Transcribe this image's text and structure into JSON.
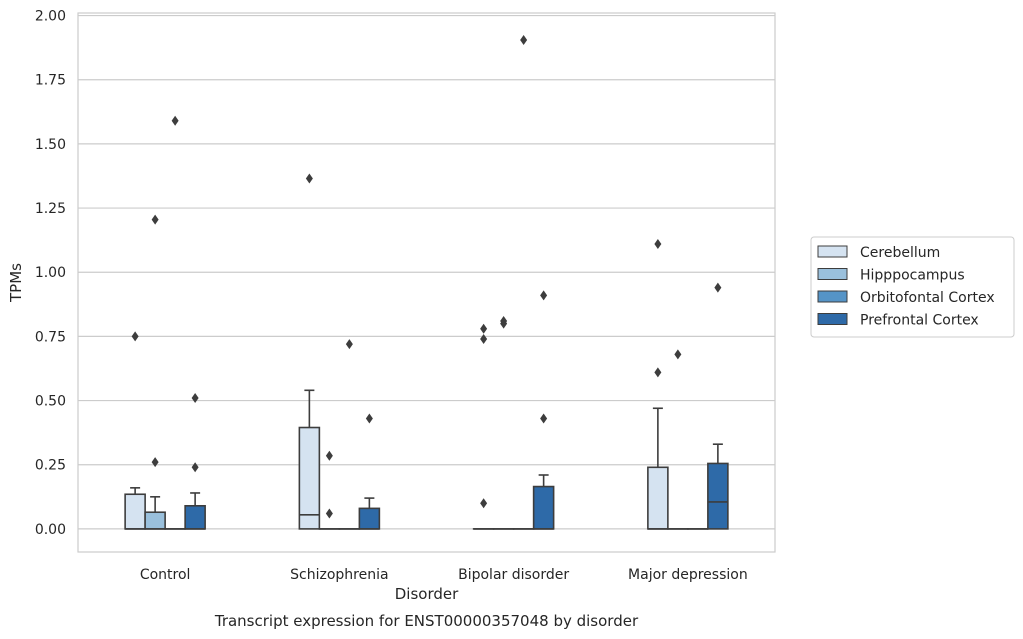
{
  "chart_data": {
    "type": "box",
    "title": "",
    "caption": "Transcript expression for ENST00000357048 by disorder",
    "xlabel": "Disorder",
    "ylabel": "TPMs",
    "ylim": [
      -0.09,
      2.01
    ],
    "yticks": [
      0.0,
      0.25,
      0.5,
      0.75,
      1.0,
      1.25,
      1.5,
      1.75,
      2.0
    ],
    "ytick_labels": [
      "0.00",
      "0.25",
      "0.50",
      "0.75",
      "1.00",
      "1.25",
      "1.50",
      "1.75",
      "2.00"
    ],
    "grid": true,
    "legend_position": "outside right",
    "categories": [
      "Control",
      "Schizophrenia",
      "Bipolar disorder",
      "Major depression"
    ],
    "series": [
      {
        "name": "Cerebellum",
        "color": "#d5e3f1",
        "boxes": [
          {
            "q1": 0.0,
            "median": 0.0,
            "q3": 0.135,
            "whisker_low": 0.0,
            "whisker_high": 0.16,
            "outliers": [
              0.75
            ]
          },
          {
            "q1": 0.0,
            "median": 0.055,
            "q3": 0.395,
            "whisker_low": 0.0,
            "whisker_high": 0.54,
            "outliers": [
              1.365
            ]
          },
          {
            "q1": 0.0,
            "median": 0.0,
            "q3": 0.0,
            "whisker_low": 0.0,
            "whisker_high": 0.0,
            "outliers": [
              0.1,
              0.74,
              0.78
            ]
          },
          {
            "q1": 0.0,
            "median": 0.0,
            "q3": 0.24,
            "whisker_low": 0.0,
            "whisker_high": 0.47,
            "outliers": [
              0.61,
              1.11
            ]
          }
        ]
      },
      {
        "name": "Hipppocampus",
        "color": "#9ac0dc",
        "boxes": [
          {
            "q1": 0.0,
            "median": 0.0,
            "q3": 0.065,
            "whisker_low": 0.0,
            "whisker_high": 0.125,
            "outliers": [
              0.26,
              1.205
            ]
          },
          {
            "q1": 0.0,
            "median": 0.0,
            "q3": 0.0,
            "whisker_low": 0.0,
            "whisker_high": 0.0,
            "outliers": [
              0.06,
              0.285
            ]
          },
          {
            "q1": 0.0,
            "median": 0.0,
            "q3": 0.0,
            "whisker_low": 0.0,
            "whisker_high": 0.0,
            "outliers": [
              0.8,
              0.81
            ]
          },
          {
            "q1": 0.0,
            "median": 0.0,
            "q3": 0.0,
            "whisker_low": 0.0,
            "whisker_high": 0.0,
            "outliers": [
              0.68
            ]
          }
        ]
      },
      {
        "name": "Orbitofontal Cortex",
        "color": "#5594c7",
        "boxes": [
          {
            "q1": 0.0,
            "median": 0.0,
            "q3": 0.0,
            "whisker_low": 0.0,
            "whisker_high": 0.0,
            "outliers": [
              1.59
            ]
          },
          {
            "q1": 0.0,
            "median": 0.0,
            "q3": 0.0,
            "whisker_low": 0.0,
            "whisker_high": 0.0,
            "outliers": [
              0.72
            ]
          },
          {
            "q1": 0.0,
            "median": 0.0,
            "q3": 0.0,
            "whisker_low": 0.0,
            "whisker_high": 0.0,
            "outliers": [
              1.905
            ]
          },
          {
            "q1": 0.0,
            "median": 0.0,
            "q3": 0.0,
            "whisker_low": 0.0,
            "whisker_high": 0.0,
            "outliers": []
          }
        ]
      },
      {
        "name": "Prefrontal Cortex",
        "color": "#2e6aa8",
        "boxes": [
          {
            "q1": 0.0,
            "median": 0.0,
            "q3": 0.09,
            "whisker_low": 0.0,
            "whisker_high": 0.14,
            "outliers": [
              0.24,
              0.51
            ]
          },
          {
            "q1": 0.0,
            "median": 0.0,
            "q3": 0.08,
            "whisker_low": 0.0,
            "whisker_high": 0.12,
            "outliers": [
              0.43
            ]
          },
          {
            "q1": 0.0,
            "median": 0.0,
            "q3": 0.165,
            "whisker_low": 0.0,
            "whisker_high": 0.21,
            "outliers": [
              0.43,
              0.91
            ]
          },
          {
            "q1": 0.0,
            "median": 0.105,
            "q3": 0.255,
            "whisker_low": 0.0,
            "whisker_high": 0.33,
            "outliers": [
              0.94
            ]
          }
        ]
      }
    ]
  }
}
